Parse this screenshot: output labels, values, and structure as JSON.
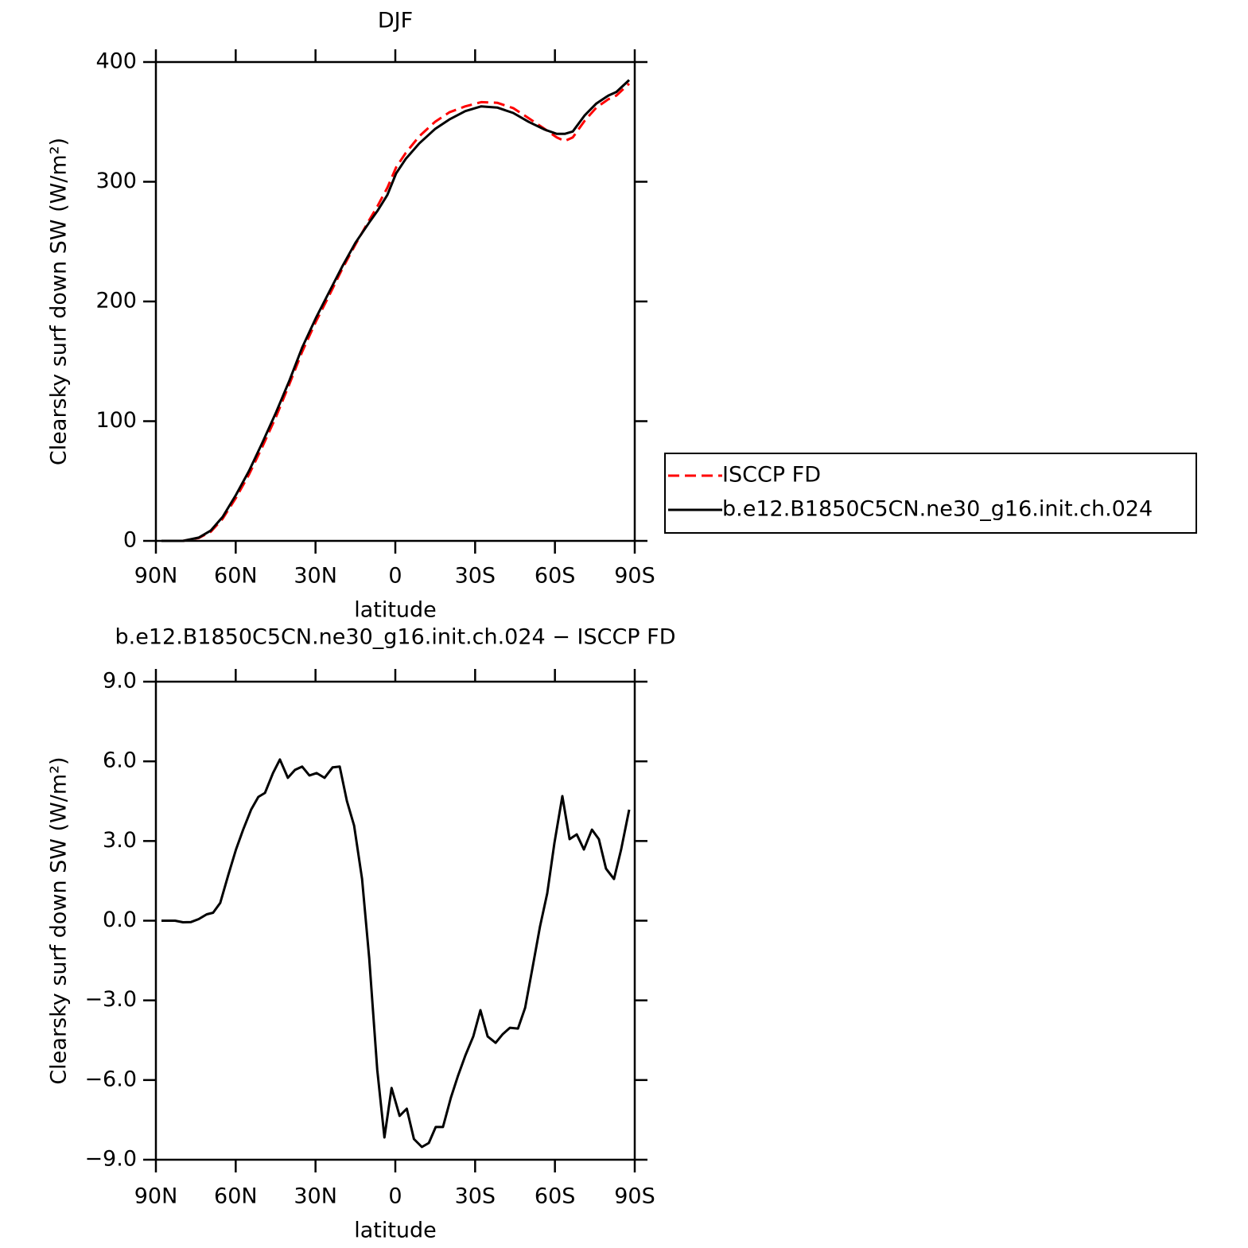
{
  "chart_data": [
    {
      "type": "line",
      "title": "DJF",
      "xlabel": "latitude",
      "ylabel": "Clearsky surf down SW (W/m²)",
      "x": [
        87.9,
        79.8,
        73.9,
        69.4,
        64.9,
        59.9,
        55.0,
        49.9,
        44.8,
        39.8,
        35.0,
        29.9,
        25.1,
        20.0,
        15.0,
        9.8,
        6.6,
        3.0,
        -0.3,
        -3.9,
        -9.0,
        -14.9,
        -20.3,
        -26.3,
        -32.3,
        -38.3,
        -44.3,
        -50.2,
        -56.2,
        -60.7,
        -63.7,
        -66.7,
        -71.2,
        -75.6,
        -80.1,
        -83.1,
        -87.9
      ],
      "series": [
        {
          "name": "ISCCP FD",
          "color": "#ff0000",
          "linestyle": "dashed",
          "values": [
            0,
            0,
            2.4,
            7.6,
            18.5,
            36,
            55.5,
            79,
            104,
            131,
            158,
            183,
            204,
            227,
            247.5,
            268,
            280,
            295,
            312,
            324,
            338,
            350,
            358,
            363,
            366.5,
            366,
            361.5,
            353,
            344,
            337,
            334,
            337,
            351,
            362,
            369,
            372,
            382
          ]
        },
        {
          "name": "b.e12.B1850C5CN.ne30_g16.init.ch.024",
          "color": "#000000",
          "linestyle": "solid",
          "values": [
            0,
            0,
            2.7,
            8.6,
            20,
            38.5,
            58.5,
            82.4,
            107.6,
            134,
            161.5,
            186,
            207,
            229,
            249,
            266,
            276,
            289,
            307,
            319,
            332,
            344,
            352,
            359,
            363,
            362,
            357.5,
            350,
            343.5,
            340,
            340,
            342,
            355.5,
            365.4,
            372,
            375,
            385
          ]
        }
      ],
      "xlim": [
        90,
        -90
      ],
      "xticks": [
        {
          "value": 90,
          "label": "90N"
        },
        {
          "value": 60,
          "label": "60N"
        },
        {
          "value": 30,
          "label": "30N"
        },
        0,
        {
          "value": -30,
          "label": "30S"
        },
        {
          "value": -60,
          "label": "60S"
        },
        {
          "value": -90,
          "label": "90S"
        }
      ],
      "ylim": [
        0,
        400
      ],
      "yticks": [
        0,
        100,
        200,
        300,
        400
      ],
      "legend": "outside-right"
    },
    {
      "type": "line",
      "title": "b.e12.B1850C5CN.ne30_g16.init.ch.024 − ISCCP FD",
      "xlabel": "latitude",
      "ylabel": "Clearsky surf down SW (W/m²)",
      "x": [
        87.9,
        82.8,
        79.8,
        76.8,
        73.9,
        70.9,
        68.5,
        65.8,
        62.8,
        59.9,
        57.2,
        54.2,
        51.5,
        49.0,
        46.0,
        43.4,
        40.4,
        37.7,
        35.0,
        32.3,
        29.6,
        26.6,
        23.6,
        20.9,
        18.2,
        15.5,
        12.5,
        9.8,
        6.8,
        4.1,
        1.4,
        -1.6,
        -4.3,
        -7.0,
        -10.0,
        -12.6,
        -15.2,
        -17.9,
        -20.9,
        -23.6,
        -26.3,
        -29.3,
        -32.0,
        -34.7,
        -37.7,
        -40.4,
        -43.1,
        -46.1,
        -48.8,
        -51.4,
        -54.4,
        -57.1,
        -59.8,
        -62.8,
        -65.5,
        -68.2,
        -70.9,
        -73.9,
        -76.5,
        -79.2,
        -82.2,
        -84.9,
        -87.9
      ],
      "values": [
        0.0,
        0.0,
        -0.06,
        -0.05,
        0.06,
        0.24,
        0.3,
        0.67,
        1.72,
        2.68,
        3.43,
        4.18,
        4.66,
        4.81,
        5.56,
        6.07,
        5.38,
        5.68,
        5.8,
        5.47,
        5.56,
        5.38,
        5.77,
        5.8,
        4.51,
        3.58,
        1.57,
        -1.42,
        -5.62,
        -8.16,
        -6.3,
        -7.35,
        -7.08,
        -8.22,
        -8.52,
        -8.37,
        -7.77,
        -7.77,
        -6.66,
        -5.83,
        -5.08,
        -4.36,
        -3.37,
        -4.36,
        -4.6,
        -4.27,
        -4.03,
        -4.06,
        -3.28,
        -1.87,
        -0.22,
        1.03,
        2.92,
        4.69,
        3.07,
        3.25,
        2.68,
        3.43,
        3.07,
        1.96,
        1.57,
        2.68,
        4.18
      ],
      "color": "#000000",
      "xlim": [
        90,
        -90
      ],
      "xticks": [
        {
          "value": 90,
          "label": "90N"
        },
        {
          "value": 60,
          "label": "60N"
        },
        {
          "value": 30,
          "label": "30N"
        },
        0,
        {
          "value": -30,
          "label": "30S"
        },
        {
          "value": -60,
          "label": "60S"
        },
        {
          "value": -90,
          "label": "90S"
        }
      ],
      "ylim": [
        -9,
        9
      ],
      "yticks": [
        {
          "value": -9,
          "label": "−9.0"
        },
        {
          "value": -6,
          "label": "−6.0"
        },
        {
          "value": -3,
          "label": "−3.0"
        },
        {
          "value": 0,
          "label": "0.0"
        },
        {
          "value": 3,
          "label": "3.0"
        },
        {
          "value": 6,
          "label": "6.0"
        },
        {
          "value": 9,
          "label": "9.0"
        }
      ]
    }
  ]
}
